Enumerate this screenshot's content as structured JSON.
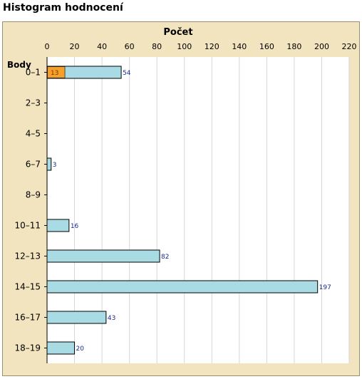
{
  "page_title": "Histogram hodnocení",
  "chart_data": {
    "type": "bar",
    "orientation": "horizontal",
    "stacked": true,
    "xlabel": "Počet",
    "ylabel": "Body",
    "xlim": [
      0,
      220
    ],
    "xticks": [
      0,
      20,
      40,
      60,
      80,
      100,
      120,
      140,
      160,
      180,
      200,
      220
    ],
    "categories": [
      "0–1",
      "2–3",
      "4–5",
      "6–7",
      "8–9",
      "10–11",
      "12–13",
      "14–15",
      "16–17",
      "18–19"
    ],
    "grid": true,
    "series": [
      {
        "values": [
          13,
          0,
          0,
          0,
          0,
          0,
          0,
          0,
          0,
          0
        ],
        "color": "#f5a02a",
        "label_color": "#7a3800"
      },
      {
        "values": [
          54,
          0,
          0,
          3,
          0,
          16,
          82,
          197,
          43,
          20
        ],
        "color": "#a8dbe4",
        "label_color": "#1a2a90"
      }
    ],
    "colors": {
      "frame_background": "#f2e4be",
      "plot_background": "#ffffff",
      "grid": "#d6d6d6",
      "border": "#000000"
    }
  }
}
